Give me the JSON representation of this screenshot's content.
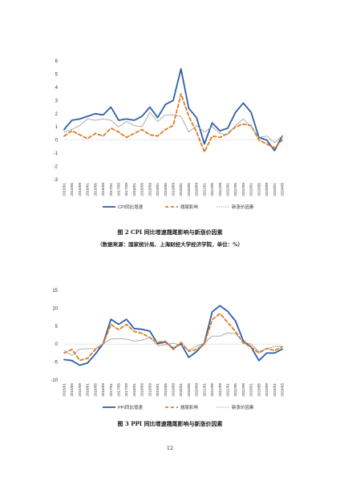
{
  "charts": [
    {
      "type": "line",
      "title": "图 2 CPI 同比增速翘尾影响与新涨价因素",
      "source_note": "（数据来源：国家统计局、上海财经大学经济学院，单位：%）",
      "ylim": [
        -3,
        6
      ],
      "yticks": [
        "6",
        "5",
        "4",
        "3",
        "2",
        "1",
        "0",
        "-1",
        "-2",
        "-3"
      ],
      "xtick_labels": [
        "2015/01",
        "2015/05",
        "2015/09",
        "2016/01",
        "2016/05",
        "2016/09",
        "2017/01",
        "2017/05",
        "2017/09",
        "2018/01",
        "2018/05",
        "2018/09",
        "2019/01",
        "2019/05",
        "2019/09",
        "2020/01",
        "2020/05",
        "2020/09",
        "2021/01",
        "2021/05",
        "2021/09",
        "2022/01",
        "2022/05",
        "2022/09",
        "2023/01",
        "2023/05",
        "2023/09",
        "2024/01",
        "2024/05"
      ],
      "legend": [
        "CPI同比增速",
        "翘尾影响",
        "新涨价因素"
      ]
    },
    {
      "type": "line",
      "title": "图 3 PPI 同比增速翘尾影响与新涨价因素",
      "ylim": [
        -10,
        15
      ],
      "yticks": [
        "15",
        "10",
        "5",
        "0",
        "-5",
        "-10"
      ],
      "xtick_labels": [
        "2015/01",
        "2015/05",
        "2015/09",
        "2016/01",
        "2016/05",
        "2016/09",
        "2017/01",
        "2017/05",
        "2017/09",
        "2018/01",
        "2018/05",
        "2018/09",
        "2019/01",
        "2019/05",
        "2019/09",
        "2020/01",
        "2020/05",
        "2020/09",
        "2021/01",
        "2021/05",
        "2021/09",
        "2022/01",
        "2022/05",
        "2022/09",
        "2023/01",
        "2023/05",
        "2023/09",
        "2024/01",
        "2024/05"
      ],
      "legend": [
        "PPI同比增速",
        "翘尾影响",
        "新涨价因素"
      ]
    }
  ],
  "colors": {
    "series1": "#2e5fa8",
    "series2": "#e07b1f",
    "series3": "#9a9a9a"
  },
  "page_number": "12",
  "chart_data": [
    {
      "type": "line",
      "title": "图 2 CPI 同比增速翘尾影响与新涨价因素",
      "ylim": [
        -3,
        6
      ],
      "x": [
        "2015/01",
        "2015/05",
        "2015/09",
        "2016/01",
        "2016/05",
        "2016/09",
        "2017/01",
        "2017/05",
        "2017/09",
        "2018/01",
        "2018/05",
        "2018/09",
        "2019/01",
        "2019/05",
        "2019/09",
        "2020/01",
        "2020/05",
        "2020/09",
        "2021/01",
        "2021/05",
        "2021/09",
        "2022/01",
        "2022/05",
        "2022/09",
        "2023/01",
        "2023/05",
        "2023/09",
        "2024/01",
        "2024/05"
      ],
      "series": [
        {
          "name": "CPI同比增速",
          "values": [
            0.8,
            1.5,
            1.6,
            1.8,
            2.0,
            1.9,
            2.5,
            1.5,
            1.6,
            1.5,
            1.8,
            2.5,
            1.7,
            2.7,
            3.0,
            5.4,
            2.4,
            1.7,
            -0.3,
            1.3,
            0.7,
            0.9,
            2.1,
            2.8,
            2.1,
            0.2,
            0.0,
            -0.8,
            0.3
          ]
        },
        {
          "name": "翘尾影响",
          "values": [
            0.3,
            0.7,
            0.4,
            0.1,
            0.5,
            0.3,
            0.9,
            0.6,
            0.2,
            0.5,
            0.8,
            0.4,
            0.3,
            0.8,
            1.1,
            3.5,
            1.8,
            0.6,
            -0.9,
            0.3,
            0.2,
            0.5,
            1.0,
            1.2,
            1.1,
            0.0,
            -0.3,
            -0.6,
            0.0
          ]
        },
        {
          "name": "新涨价因素",
          "values": [
            0.6,
            0.8,
            1.1,
            1.6,
            1.5,
            1.6,
            1.5,
            1.0,
            1.4,
            1.1,
            1.0,
            2.1,
            1.4,
            1.9,
            1.9,
            1.8,
            0.6,
            1.1,
            0.6,
            1.0,
            0.5,
            0.4,
            1.1,
            1.6,
            1.0,
            0.2,
            0.3,
            -0.2,
            0.3
          ]
        }
      ]
    },
    {
      "type": "line",
      "title": "图 3 PPI 同比增速翘尾影响与新涨价因素",
      "ylim": [
        -10,
        15
      ],
      "x": [
        "2015/01",
        "2015/05",
        "2015/09",
        "2016/01",
        "2016/05",
        "2016/09",
        "2017/01",
        "2017/05",
        "2017/09",
        "2018/01",
        "2018/05",
        "2018/09",
        "2019/01",
        "2019/05",
        "2019/09",
        "2020/01",
        "2020/05",
        "2020/09",
        "2021/01",
        "2021/05",
        "2021/09",
        "2022/01",
        "2022/05",
        "2022/09",
        "2023/01",
        "2023/05",
        "2023/09",
        "2024/01",
        "2024/05"
      ],
      "series": [
        {
          "name": "PPI同比增速",
          "values": [
            -4.3,
            -4.6,
            -5.9,
            -5.3,
            -2.8,
            0.1,
            6.9,
            5.5,
            6.9,
            4.3,
            4.1,
            3.6,
            0.1,
            0.6,
            -1.2,
            0.1,
            -3.7,
            -2.1,
            0.3,
            9.0,
            10.7,
            9.1,
            6.4,
            0.9,
            -0.8,
            -4.6,
            -2.5,
            -2.5,
            -1.4
          ]
        },
        {
          "name": "翘尾影响",
          "values": [
            -2.5,
            -1.5,
            -4.5,
            -4.0,
            -1.5,
            0.0,
            5.5,
            4.0,
            5.5,
            3.5,
            3.0,
            1.8,
            0.5,
            0.8,
            -1.5,
            0.5,
            -2.0,
            -1.5,
            0.0,
            6.8,
            8.5,
            6.0,
            3.5,
            0.3,
            -0.8,
            -2.5,
            -1.2,
            -1.8,
            -0.8
          ]
        },
        {
          "name": "新涨价因素",
          "values": [
            -1.8,
            -3.1,
            -1.4,
            -1.3,
            -1.3,
            0.1,
            1.4,
            1.5,
            1.4,
            0.8,
            1.1,
            1.8,
            -0.4,
            -0.2,
            0.3,
            -0.4,
            -1.7,
            -0.6,
            0.3,
            2.2,
            2.2,
            3.1,
            2.9,
            0.6,
            0.0,
            -2.1,
            -1.3,
            -0.7,
            -0.6
          ]
        }
      ]
    }
  ]
}
